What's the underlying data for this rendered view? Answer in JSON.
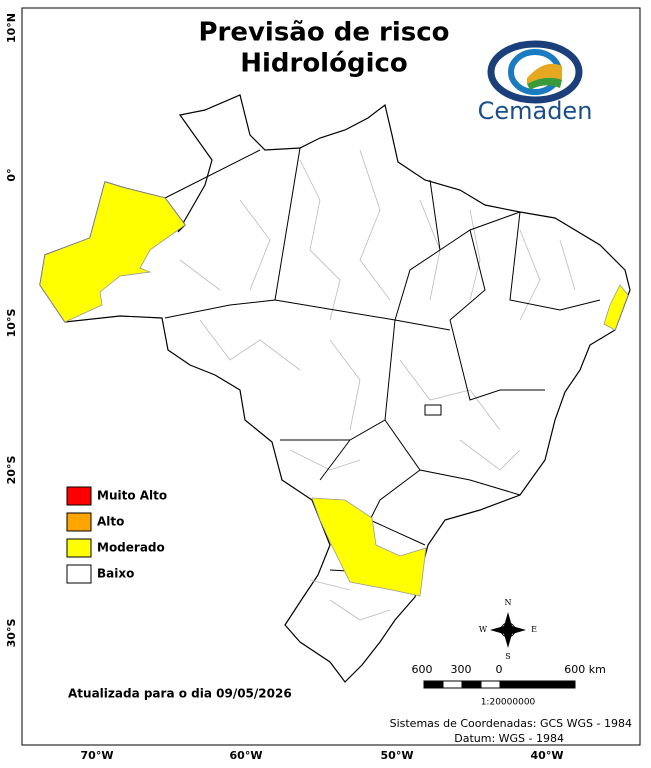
{
  "title": [
    "Previsão de risco",
    "Hidrológico"
  ],
  "logo": "Cemaden",
  "latitude_labels": [
    "10°N",
    "0°",
    "10°S",
    "20°S",
    "30°S"
  ],
  "longitude_labels": [
    "70°W",
    "60°W",
    "50°W",
    "40°W"
  ],
  "legend": [
    {
      "label": "Muito Alto",
      "color": "#ff0000"
    },
    {
      "label": "Alto",
      "color": "#ffa500"
    },
    {
      "label": "Moderado",
      "color": "#ffff00"
    },
    {
      "label": "Baixo",
      "color": "#ffffff"
    }
  ],
  "updated": "Atualizada para o dia 09/05/2026",
  "compass": {
    "n": "N",
    "e": "E",
    "s": "S",
    "w": "W"
  },
  "scale": {
    "labels": [
      "600",
      "300",
      "0",
      "600 km"
    ],
    "ratio": "1:20000000"
  },
  "footer": [
    "Sistemas de Coordenadas: GCS WGS - 1984",
    "Datum: WGS - 1984"
  ]
}
